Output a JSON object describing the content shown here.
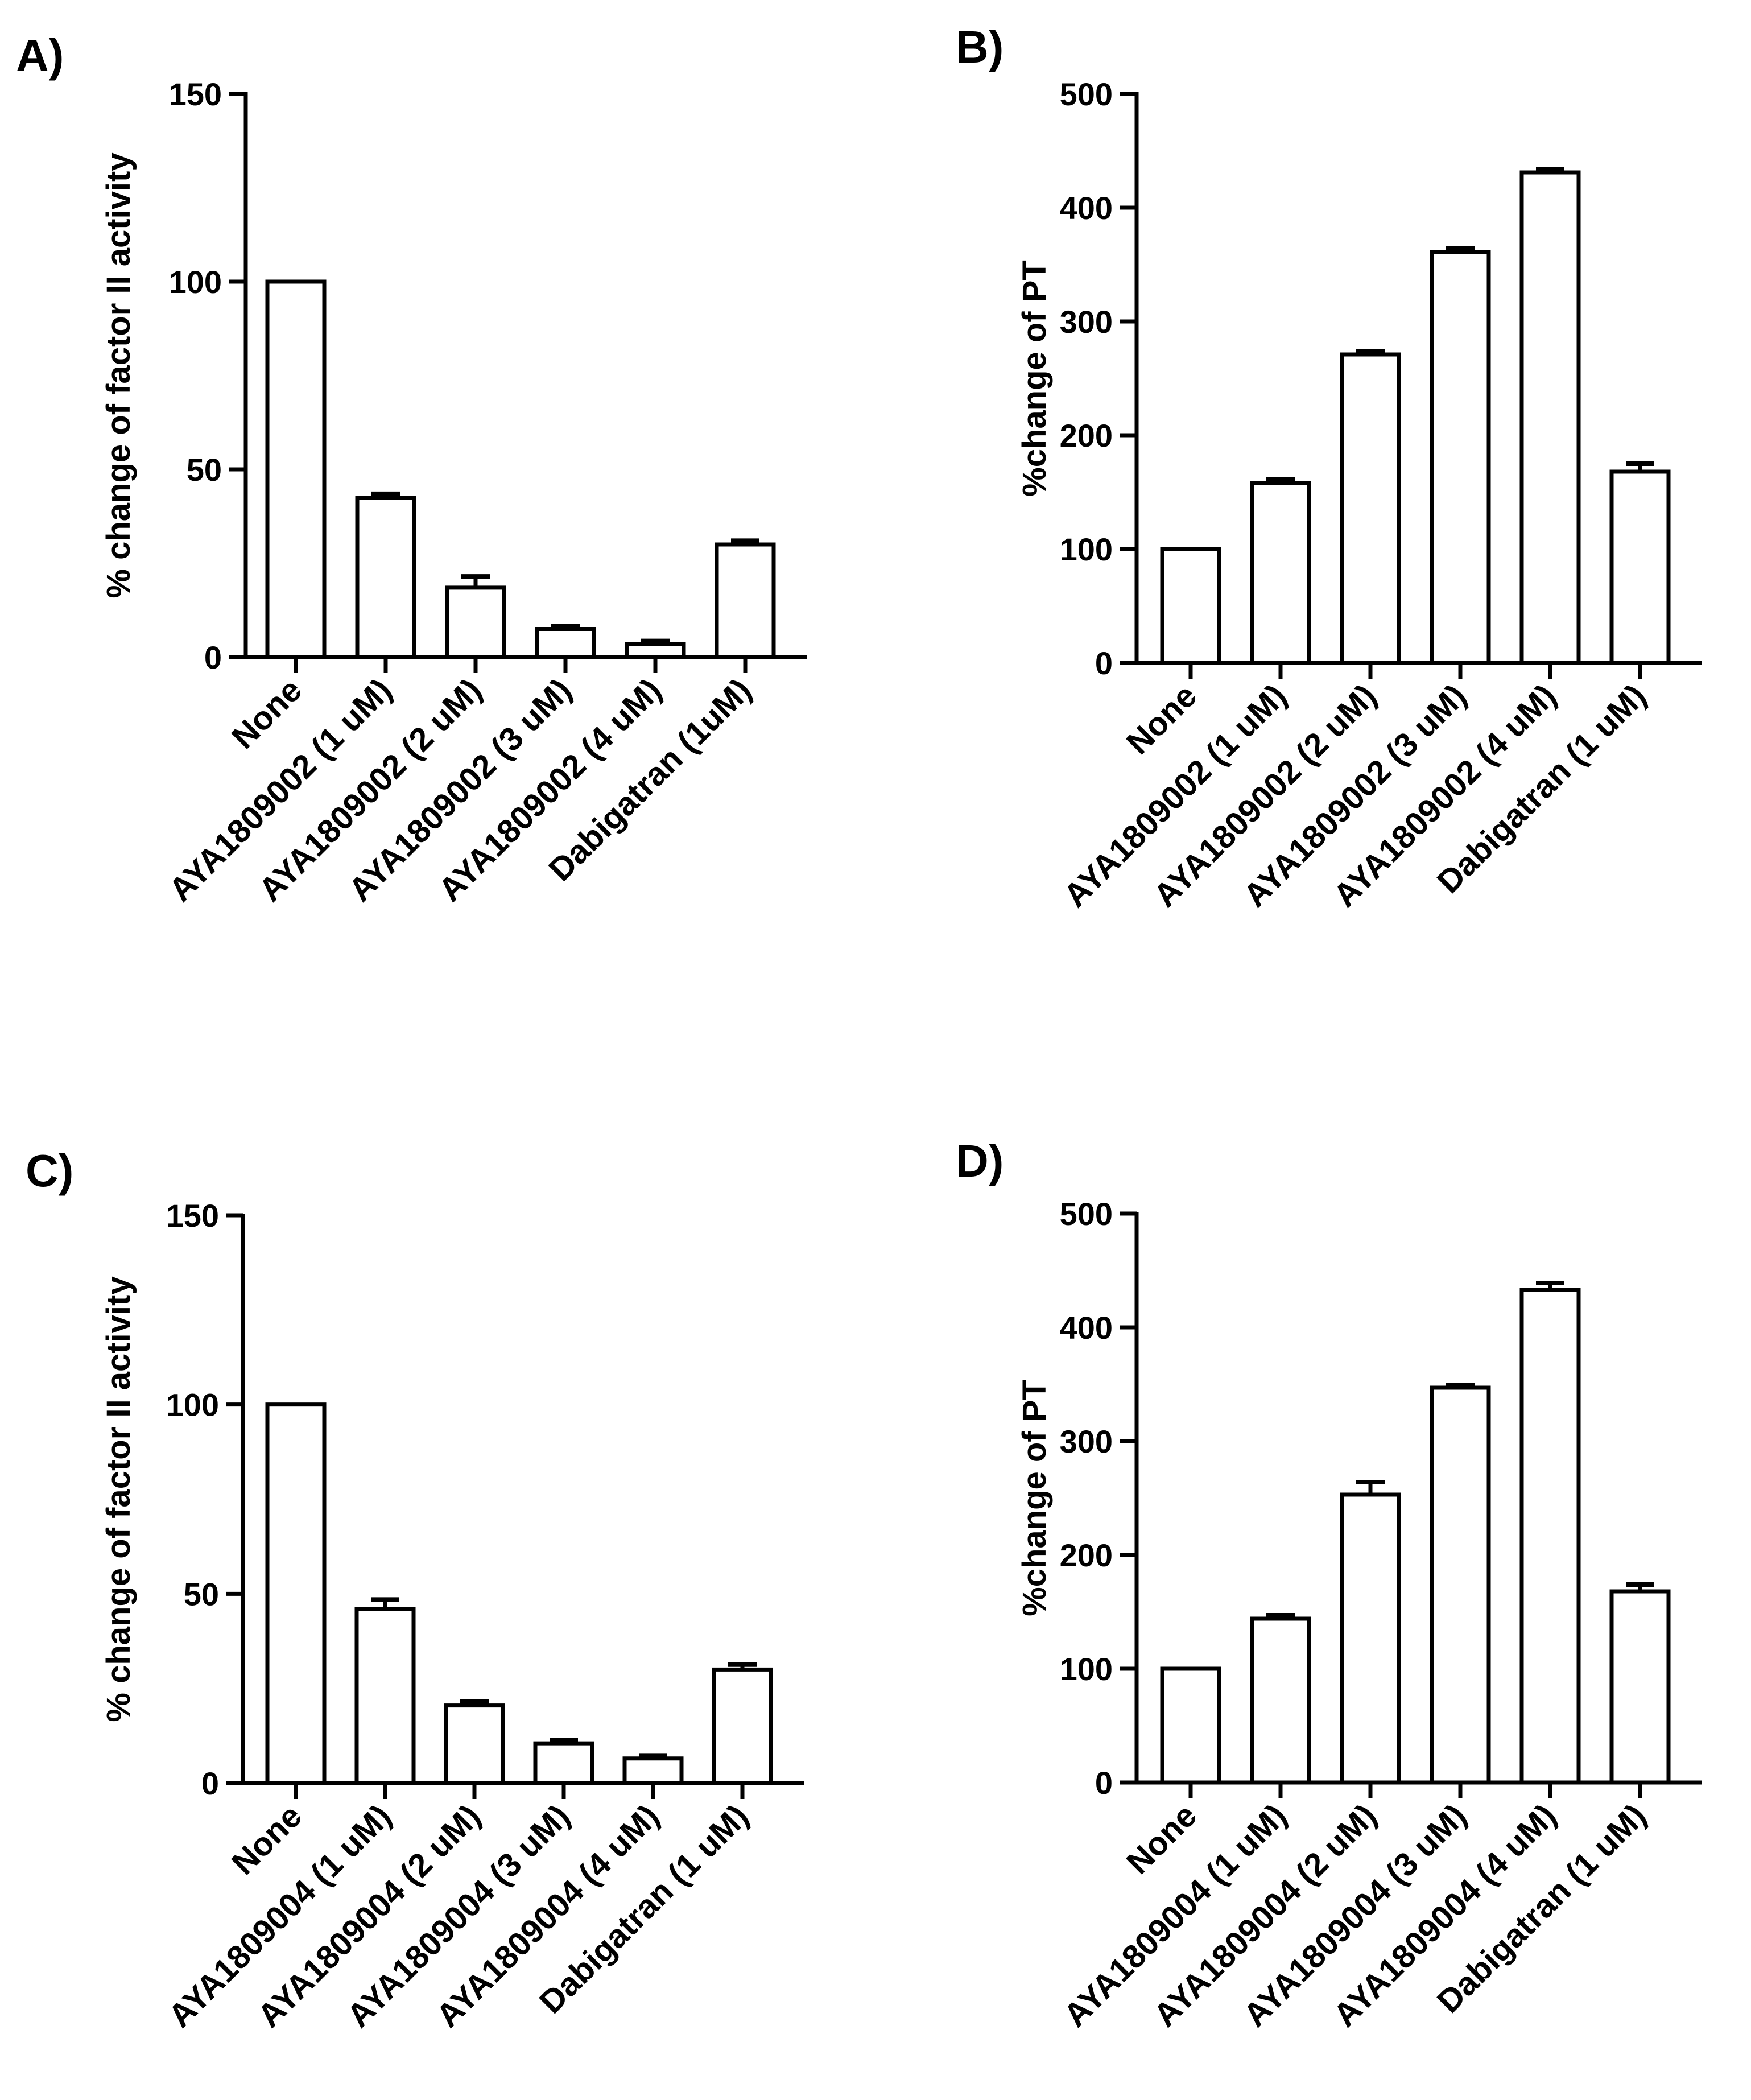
{
  "chart_data": [
    {
      "panel": "A)",
      "type": "bar",
      "ylabel": "% change of factor II activity",
      "ylim": [
        0,
        150
      ],
      "yticks": [
        "0",
        "50",
        "100",
        "150"
      ],
      "categories": [
        "None",
        "AYA1809002 (1 uM)",
        "AYA1809002 (2 uM)",
        "AYA1809002 (3 uM)",
        "AYA1809002 (4 uM)",
        "Dabigatran (1uM)"
      ],
      "values": [
        100,
        42.5,
        18.5,
        7.5,
        3.5,
        30
      ],
      "errors": [
        0,
        1,
        3,
        0.8,
        0.8,
        1
      ]
    },
    {
      "panel": "B)",
      "type": "bar",
      "ylabel": "%change of PT",
      "ylim": [
        0,
        500
      ],
      "yticks": [
        "0",
        "100",
        "200",
        "300",
        "400",
        "500"
      ],
      "categories": [
        "None",
        "AYA1809002 (1 uM)",
        "AYA1809002 (2 uM)",
        "AYA1809002 (3 uM)",
        "AYA1809002 (4 uM)",
        "Dabigatran (1 uM)"
      ],
      "values": [
        100,
        158,
        271,
        361,
        431,
        168
      ],
      "errors": [
        0,
        3,
        3,
        3,
        3,
        7
      ]
    },
    {
      "panel": "C)",
      "type": "bar",
      "ylabel": "% change of factor II activity",
      "ylim": [
        0,
        150
      ],
      "yticks": [
        "0",
        "50",
        "100",
        "150"
      ],
      "categories": [
        "None",
        "AYA1809004 (1 uM)",
        "AYA1809004 (2 uM)",
        "AYA1809004 (3 uM)",
        "AYA1809004 (4 uM)",
        "Dabigatran (1 uM)"
      ],
      "values": [
        100,
        46,
        20.5,
        10.5,
        6.5,
        30
      ],
      "errors": [
        0,
        2.5,
        1,
        0.8,
        0.8,
        1.3
      ]
    },
    {
      "panel": "D)",
      "type": "bar",
      "ylabel": "%change of PT",
      "ylim": [
        0,
        500
      ],
      "yticks": [
        "0",
        "100",
        "200",
        "300",
        "400",
        "500"
      ],
      "categories": [
        "None",
        "AYA1809004 (1 uM)",
        "AYA1809004 (2 uM)",
        "AYA1809004 (3 uM)",
        "AYA1809004 (4 uM)",
        "Dabigatran (1 uM)"
      ],
      "values": [
        100,
        144,
        253,
        347,
        433,
        168
      ],
      "errors": [
        0,
        3,
        11,
        2,
        6,
        6
      ]
    }
  ]
}
